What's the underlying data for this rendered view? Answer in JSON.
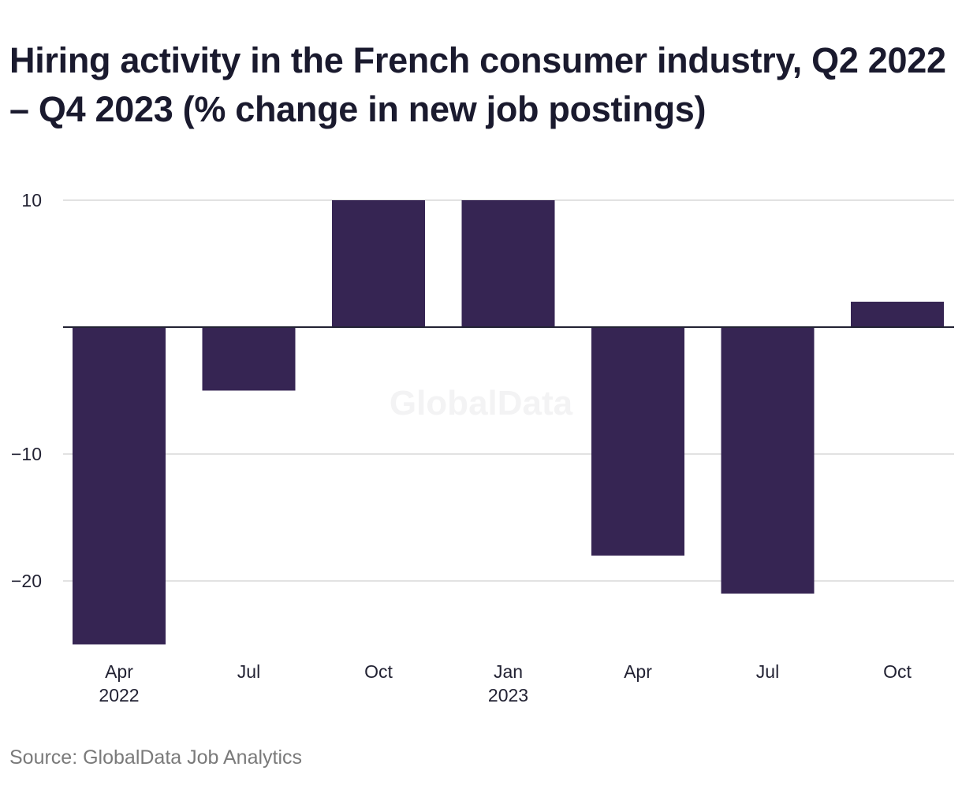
{
  "title": "Hiring activity in the French consumer industry, Q2 2022 – Q4 2023 (% change in new job postings)",
  "source": "Source: GlobalData Job Analytics",
  "watermark": "GlobalData",
  "colors": {
    "bar": "#362553",
    "grid": "#d9d9d9",
    "zero_line": "#222233",
    "text": "#1a1a2e",
    "source_text": "#7a7a7a"
  },
  "chart_data": {
    "type": "bar",
    "categories": [
      "Apr 2022",
      "Jul 2022",
      "Oct 2022",
      "Jan 2023",
      "Apr 2023",
      "Jul 2023",
      "Oct 2023"
    ],
    "x_tick_labels": [
      [
        "Apr",
        "2022"
      ],
      [
        "Jul",
        ""
      ],
      [
        "Oct",
        ""
      ],
      [
        "Jan",
        "2023"
      ],
      [
        "Apr",
        ""
      ],
      [
        "Jul",
        ""
      ],
      [
        "Oct",
        ""
      ]
    ],
    "values": [
      -25,
      -5,
      10,
      10,
      -18,
      -21,
      2
    ],
    "y_ticks": [
      10,
      -10,
      -20
    ],
    "y_tick_labels": [
      "10",
      "−10",
      "−20"
    ],
    "ylim": [
      -25,
      10
    ],
    "grid": true,
    "legend": "none",
    "title": "Hiring activity in the French consumer industry, Q2 2022 – Q4 2023 (% change in new job postings)",
    "xlabel": "",
    "ylabel": ""
  }
}
